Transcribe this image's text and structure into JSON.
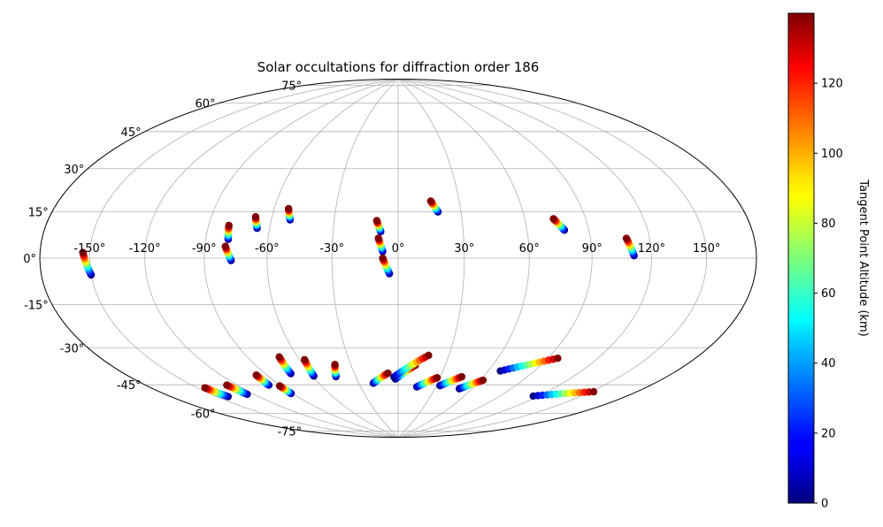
{
  "chart_data": {
    "type": "scatter",
    "projection": "hammer",
    "title": "Solar occultations for diffraction order 186",
    "grid": true,
    "lon_ticks": [
      -150,
      -120,
      -90,
      -60,
      -30,
      0,
      30,
      60,
      90,
      120,
      150
    ],
    "lon_tick_labels": [
      "-150°",
      "-120°",
      "-90°",
      "-60°",
      "-30°",
      "0°",
      "30°",
      "60°",
      "90°",
      "120°",
      "150°"
    ],
    "lat_ticks": [
      75,
      60,
      45,
      30,
      15,
      0,
      -15,
      -30,
      -45,
      -60,
      -75
    ],
    "lat_tick_labels": [
      "75°",
      "60°",
      "45°",
      "30°",
      "15°",
      "0°",
      "-15°",
      "-30°",
      "-45°",
      "-60°",
      "-75°"
    ],
    "colorbar": {
      "label": "Tangent Point Altitude (km)",
      "colormap": "jet",
      "range": [
        0,
        140
      ],
      "ticks": [
        0,
        20,
        40,
        60,
        80,
        100,
        120
      ],
      "tick_labels": [
        "0",
        "20",
        "40",
        "60",
        "80",
        "100",
        "120"
      ]
    },
    "tracks": [
      {
        "lon_top": -154,
        "lat_top": 2,
        "lon_bottom": -150,
        "lat_bottom": -6
      },
      {
        "lon_top": -80,
        "lat_top": 14,
        "lon_bottom": -79,
        "lat_bottom": 8
      },
      {
        "lon_top": -80,
        "lat_top": 5,
        "lon_bottom": -77,
        "lat_bottom": -1
      },
      {
        "lon_top": -68,
        "lat_top": 18,
        "lon_bottom": -66,
        "lat_bottom": 13
      },
      {
        "lon_top": -53,
        "lat_top": 22,
        "lon_bottom": -51,
        "lat_bottom": 17
      },
      {
        "lon_top": -10,
        "lat_top": 17,
        "lon_bottom": -8,
        "lat_bottom": 12
      },
      {
        "lon_top": -9,
        "lat_top": 9,
        "lon_bottom": -7,
        "lat_bottom": 3
      },
      {
        "lon_top": -7,
        "lat_top": 0,
        "lon_bottom": -4,
        "lat_bottom": -7
      },
      {
        "lon_top": 16,
        "lat_top": 26,
        "lon_bottom": 19,
        "lat_bottom": 21
      },
      {
        "lon_top": 74,
        "lat_top": 17,
        "lon_bottom": 78,
        "lat_bottom": 12
      },
      {
        "lon_top": 108,
        "lat_top": 8,
        "lon_bottom": 111,
        "lat_bottom": 1
      },
      {
        "lon_top": -145,
        "lat_top": -52,
        "lon_bottom": -142,
        "lat_bottom": -57
      },
      {
        "lon_top": -127,
        "lat_top": -53,
        "lon_bottom": -125,
        "lat_bottom": -58
      },
      {
        "lon_top": -97,
        "lat_top": -51,
        "lon_bottom": -98,
        "lat_bottom": -56
      },
      {
        "lon_top": -91,
        "lat_top": -57,
        "lon_bottom": -91,
        "lat_bottom": -61
      },
      {
        "lon_top": -71,
        "lat_top": -44,
        "lon_bottom": -73,
        "lat_bottom": -52
      },
      {
        "lon_top": -57,
        "lat_top": -46,
        "lon_bottom": -59,
        "lat_bottom": -54
      },
      {
        "lon_top": -40,
        "lat_top": -49,
        "lon_bottom": -44,
        "lat_bottom": -55
      },
      {
        "lon_top": -7,
        "lat_top": -54,
        "lon_bottom": -19,
        "lat_bottom": -59
      },
      {
        "lon_top": 11,
        "lat_top": -50,
        "lon_bottom": -2,
        "lat_bottom": -57
      },
      {
        "lon_top": 18,
        "lat_top": -45,
        "lon_bottom": -3,
        "lat_bottom": -56
      },
      {
        "lon_top": 28,
        "lat_top": -56,
        "lon_bottom": 15,
        "lat_bottom": -61
      },
      {
        "lon_top": 45,
        "lat_top": -55,
        "lon_bottom": 33,
        "lat_bottom": -60
      },
      {
        "lon_top": 62,
        "lat_top": -56,
        "lon_bottom": 50,
        "lat_bottom": -61
      },
      {
        "lon_top": 96,
        "lat_top": -43,
        "lon_bottom": 68,
        "lat_bottom": -51
      },
      {
        "lon_top": 152,
        "lat_top": -53,
        "lon_bottom": 116,
        "lat_bottom": -60
      }
    ]
  }
}
